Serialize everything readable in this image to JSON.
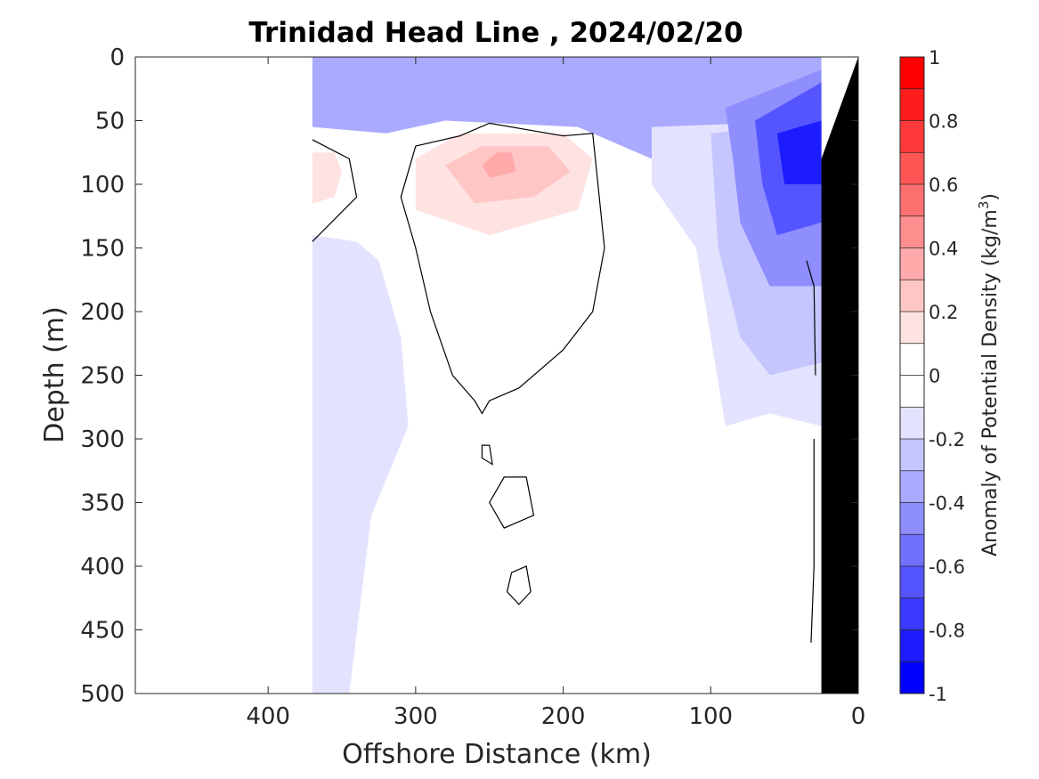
{
  "chart_data": {
    "type": "heatmap",
    "title": "Trinidad Head Line , 2024/02/20",
    "xlabel": "Offshore Distance (km)",
    "ylabel": "Depth (m)",
    "xlim": [
      490,
      0
    ],
    "ylim": [
      0,
      500
    ],
    "x_reversed": true,
    "y_reversed": true,
    "x_ticks": [
      400,
      300,
      200,
      100,
      0
    ],
    "x_tick_labels": [
      "400",
      "300",
      "200",
      "100",
      "0"
    ],
    "y_ticks": [
      0,
      50,
      100,
      150,
      200,
      250,
      300,
      350,
      400,
      450,
      500
    ],
    "y_tick_labels": [
      "0",
      "50",
      "100",
      "150",
      "200",
      "250",
      "300",
      "350",
      "400",
      "450",
      "500"
    ],
    "grid": false,
    "data_extent_x": [
      370,
      0
    ],
    "colorbar": {
      "label_main": "Anomaly of Potential Density (kg/m",
      "label_exp": "3",
      "label_close": ")",
      "clim": [
        -1,
        1
      ],
      "ticks": [
        1,
        0.8,
        0.6,
        0.4,
        0.2,
        0,
        -0.2,
        -0.4,
        -0.6,
        -0.8,
        -1
      ],
      "tick_labels": [
        "1",
        "0.8",
        "0.6",
        "0.4",
        "0.2",
        "0",
        "-0.2",
        "-0.4",
        "-0.6",
        "-0.8",
        "-1"
      ],
      "levels": [
        {
          "min": 0.9,
          "max": 1.0,
          "color": "#ff0000"
        },
        {
          "min": 0.8,
          "max": 0.9,
          "color": "#ff1c1c"
        },
        {
          "min": 0.7,
          "max": 0.8,
          "color": "#ff3939"
        },
        {
          "min": 0.6,
          "max": 0.7,
          "color": "#ff5555"
        },
        {
          "min": 0.5,
          "max": 0.6,
          "color": "#ff7171"
        },
        {
          "min": 0.4,
          "max": 0.5,
          "color": "#ff8e8e"
        },
        {
          "min": 0.3,
          "max": 0.4,
          "color": "#ffaaaa"
        },
        {
          "min": 0.2,
          "max": 0.3,
          "color": "#ffc6c6"
        },
        {
          "min": 0.1,
          "max": 0.2,
          "color": "#ffe3e3"
        },
        {
          "min": 0.0,
          "max": 0.1,
          "color": "#ffffff"
        },
        {
          "min": -0.1,
          "max": 0.0,
          "color": "#ffffff"
        },
        {
          "min": -0.2,
          "max": -0.1,
          "color": "#e3e3ff"
        },
        {
          "min": -0.3,
          "max": -0.2,
          "color": "#c6c6ff"
        },
        {
          "min": -0.4,
          "max": -0.3,
          "color": "#aaaaff"
        },
        {
          "min": -0.5,
          "max": -0.4,
          "color": "#8e8eff"
        },
        {
          "min": -0.6,
          "max": -0.5,
          "color": "#7171ff"
        },
        {
          "min": -0.7,
          "max": -0.6,
          "color": "#5555ff"
        },
        {
          "min": -0.8,
          "max": -0.7,
          "color": "#3939ff"
        },
        {
          "min": -0.9,
          "max": -0.8,
          "color": "#1c1cff"
        },
        {
          "min": -1.0,
          "max": -0.9,
          "color": "#0000ff"
        }
      ]
    },
    "regions": [
      {
        "name": "surface-layer",
        "value": -0.35,
        "color": "#aaaaff",
        "points": [
          [
            370,
            0
          ],
          [
            25,
            0
          ],
          [
            25,
            60
          ],
          [
            100,
            100
          ],
          [
            190,
            55
          ],
          [
            280,
            50
          ],
          [
            320,
            60
          ],
          [
            370,
            55
          ]
        ]
      },
      {
        "name": "slope-band",
        "value": -0.15,
        "color": "#e3e3ff",
        "points": [
          [
            370,
            140
          ],
          [
            340,
            145
          ],
          [
            325,
            160
          ],
          [
            310,
            220
          ],
          [
            305,
            290
          ],
          [
            330,
            360
          ],
          [
            345,
            500
          ],
          [
            370,
            500
          ]
        ]
      },
      {
        "name": "coastal-negative",
        "value": -0.15,
        "color": "#e3e3ff",
        "points": [
          [
            140,
            55
          ],
          [
            25,
            50
          ],
          [
            25,
            290
          ],
          [
            60,
            280
          ],
          [
            90,
            290
          ],
          [
            100,
            220
          ],
          [
            110,
            150
          ],
          [
            140,
            100
          ]
        ]
      },
      {
        "name": "coastal-negative-2",
        "value": -0.3,
        "color": "#c6c6ff",
        "points": [
          [
            100,
            60
          ],
          [
            25,
            50
          ],
          [
            25,
            240
          ],
          [
            60,
            250
          ],
          [
            80,
            220
          ],
          [
            95,
            150
          ]
        ]
      },
      {
        "name": "coastal-negative-3",
        "value": -0.45,
        "color": "#8e8eff",
        "points": [
          [
            90,
            40
          ],
          [
            25,
            10
          ],
          [
            25,
            180
          ],
          [
            60,
            180
          ],
          [
            80,
            130
          ],
          [
            85,
            80
          ]
        ]
      },
      {
        "name": "coastal-negative-4",
        "value": -0.65,
        "color": "#5555ff",
        "points": [
          [
            70,
            50
          ],
          [
            25,
            20
          ],
          [
            25,
            130
          ],
          [
            55,
            140
          ],
          [
            65,
            100
          ]
        ]
      },
      {
        "name": "coastal-core",
        "value": -0.85,
        "color": "#1c1cff",
        "points": [
          [
            55,
            60
          ],
          [
            25,
            50
          ],
          [
            25,
            100
          ],
          [
            50,
            100
          ]
        ]
      },
      {
        "name": "subsurface-positive",
        "value": 0.15,
        "color": "#ffe3e3",
        "points": [
          [
            300,
            80
          ],
          [
            270,
            60
          ],
          [
            200,
            60
          ],
          [
            180,
            80
          ],
          [
            190,
            120
          ],
          [
            250,
            140
          ],
          [
            300,
            120
          ]
        ]
      },
      {
        "name": "subsurface-positive-2",
        "value": 0.25,
        "color": "#ffc6c6",
        "points": [
          [
            280,
            85
          ],
          [
            255,
            70
          ],
          [
            210,
            70
          ],
          [
            195,
            90
          ],
          [
            220,
            110
          ],
          [
            260,
            115
          ]
        ]
      },
      {
        "name": "subsurface-positive-3",
        "value": 0.35,
        "color": "#ffaaaa",
        "points": [
          [
            255,
            85
          ],
          [
            245,
            75
          ],
          [
            235,
            75
          ],
          [
            232,
            90
          ],
          [
            250,
            95
          ]
        ]
      },
      {
        "name": "offshore-positive",
        "value": 0.15,
        "color": "#ffe3e3",
        "points": [
          [
            370,
            75
          ],
          [
            355,
            75
          ],
          [
            350,
            90
          ],
          [
            355,
            110
          ],
          [
            370,
            115
          ]
        ]
      }
    ],
    "zero_contours": [
      {
        "name": "zero-contour-main",
        "points": [
          [
            300,
            70
          ],
          [
            270,
            62
          ],
          [
            250,
            52
          ],
          [
            200,
            62
          ],
          [
            180,
            60
          ],
          [
            172,
            150
          ],
          [
            180,
            200
          ],
          [
            200,
            230
          ],
          [
            230,
            260
          ],
          [
            250,
            270
          ],
          [
            255,
            280
          ],
          [
            260,
            270
          ],
          [
            275,
            250
          ],
          [
            290,
            200
          ],
          [
            300,
            150
          ],
          [
            310,
            110
          ],
          [
            300,
            70
          ]
        ]
      },
      {
        "name": "zero-contour-west",
        "points": [
          [
            370,
            65
          ],
          [
            345,
            80
          ],
          [
            340,
            110
          ],
          [
            370,
            145
          ]
        ]
      },
      {
        "name": "zero-contour-blob-1",
        "closed": true,
        "points": [
          [
            240,
            330
          ],
          [
            225,
            330
          ],
          [
            220,
            360
          ],
          [
            240,
            370
          ],
          [
            250,
            350
          ]
        ]
      },
      {
        "name": "zero-contour-blob-2",
        "closed": true,
        "points": [
          [
            235,
            405
          ],
          [
            225,
            400
          ],
          [
            222,
            420
          ],
          [
            230,
            430
          ],
          [
            238,
            420
          ]
        ]
      },
      {
        "name": "zero-contour-blob-3",
        "closed": true,
        "points": [
          [
            255,
            305
          ],
          [
            250,
            305
          ],
          [
            248,
            320
          ],
          [
            255,
            315
          ]
        ]
      },
      {
        "name": "zero-contour-coastal",
        "points": [
          [
            35,
            160
          ],
          [
            30,
            180
          ],
          [
            29,
            250
          ]
        ]
      },
      {
        "name": "zero-contour-coastal-deep",
        "points": [
          [
            30,
            300
          ],
          [
            30,
            400
          ],
          [
            32,
            460
          ]
        ]
      }
    ],
    "shelf": {
      "color": "#000000",
      "points": [
        [
          0,
          0
        ],
        [
          25,
          80
        ],
        [
          25,
          500
        ],
        [
          0,
          500
        ]
      ]
    }
  }
}
